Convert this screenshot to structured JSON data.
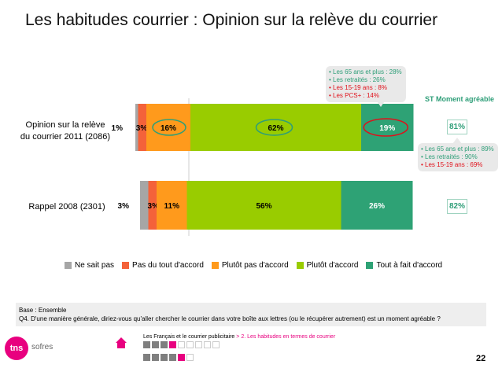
{
  "title": "Les habitudes courrier : Opinion sur la relève du courrier",
  "chart_data": {
    "type": "bar",
    "orientation": "horizontal",
    "stacked": true,
    "categories": [
      "Opinion sur la relève du courrier 2011 (2086)",
      "Rappel 2008 (2301)"
    ],
    "series": [
      {
        "name": "Ne sait pas",
        "color": "#a6a6a6",
        "values": [
          1,
          3
        ]
      },
      {
        "name": "Pas du tout d'accord",
        "color": "#f4623a",
        "values": [
          3,
          3
        ]
      },
      {
        "name": "Plutôt pas d'accord",
        "color": "#ff9a1c",
        "values": [
          16,
          11
        ]
      },
      {
        "name": "Plutôt d'accord",
        "color": "#99cc00",
        "values": [
          62,
          56
        ]
      },
      {
        "name": "Tout à fait d'accord",
        "color": "#2ea275",
        "values": [
          19,
          26
        ]
      }
    ],
    "value_labels": [
      [
        "1%",
        "3%",
        "16%",
        "62%",
        "19%"
      ],
      [
        "3%",
        "3%",
        "11%",
        "56%",
        "26%"
      ]
    ],
    "legend_position": "bottom"
  },
  "rows": {
    "row1_label_line1": "Opinion sur la relève",
    "row1_label_line2": "du courrier 2011 (2086)",
    "row2_label": "Rappel 2008 (2301)"
  },
  "st": {
    "header": "ST Moment agréable",
    "row1": "81%",
    "row2": "82%"
  },
  "bubble_top": {
    "l1": "Les 65 ans et plus : 28%",
    "l2": "Les retraités : 26%",
    "l3": "Les 15-19 ans : 8%",
    "l4": "Les PCS+ : 14%"
  },
  "bubble_right": {
    "l1": "Les 65 ans et plus : 89%",
    "l2": "Les retraités : 90%",
    "l3": "Les 15-19 ans : 69%"
  },
  "footnote": {
    "base": "Base : Ensemble",
    "question": "Q4. D'une manière générale, diriez-vous qu'aller chercher le courrier dans votre boîte aux lettres (ou le récupérer autrement) est un moment agréable ?"
  },
  "footer": {
    "logo": "tns",
    "logo_sub": "sofres",
    "crumb_main": "Les Français et le courrier publicitaire",
    "crumb_sep": " > ",
    "crumb_section": "2. Les habitudes en termes de courrier",
    "page": "22"
  },
  "colors": {
    "accent_pink": "#e8007f",
    "st_green": "#2e9e78",
    "highlight_red": "#e0101a",
    "highlight_green": "#2e9e78"
  }
}
